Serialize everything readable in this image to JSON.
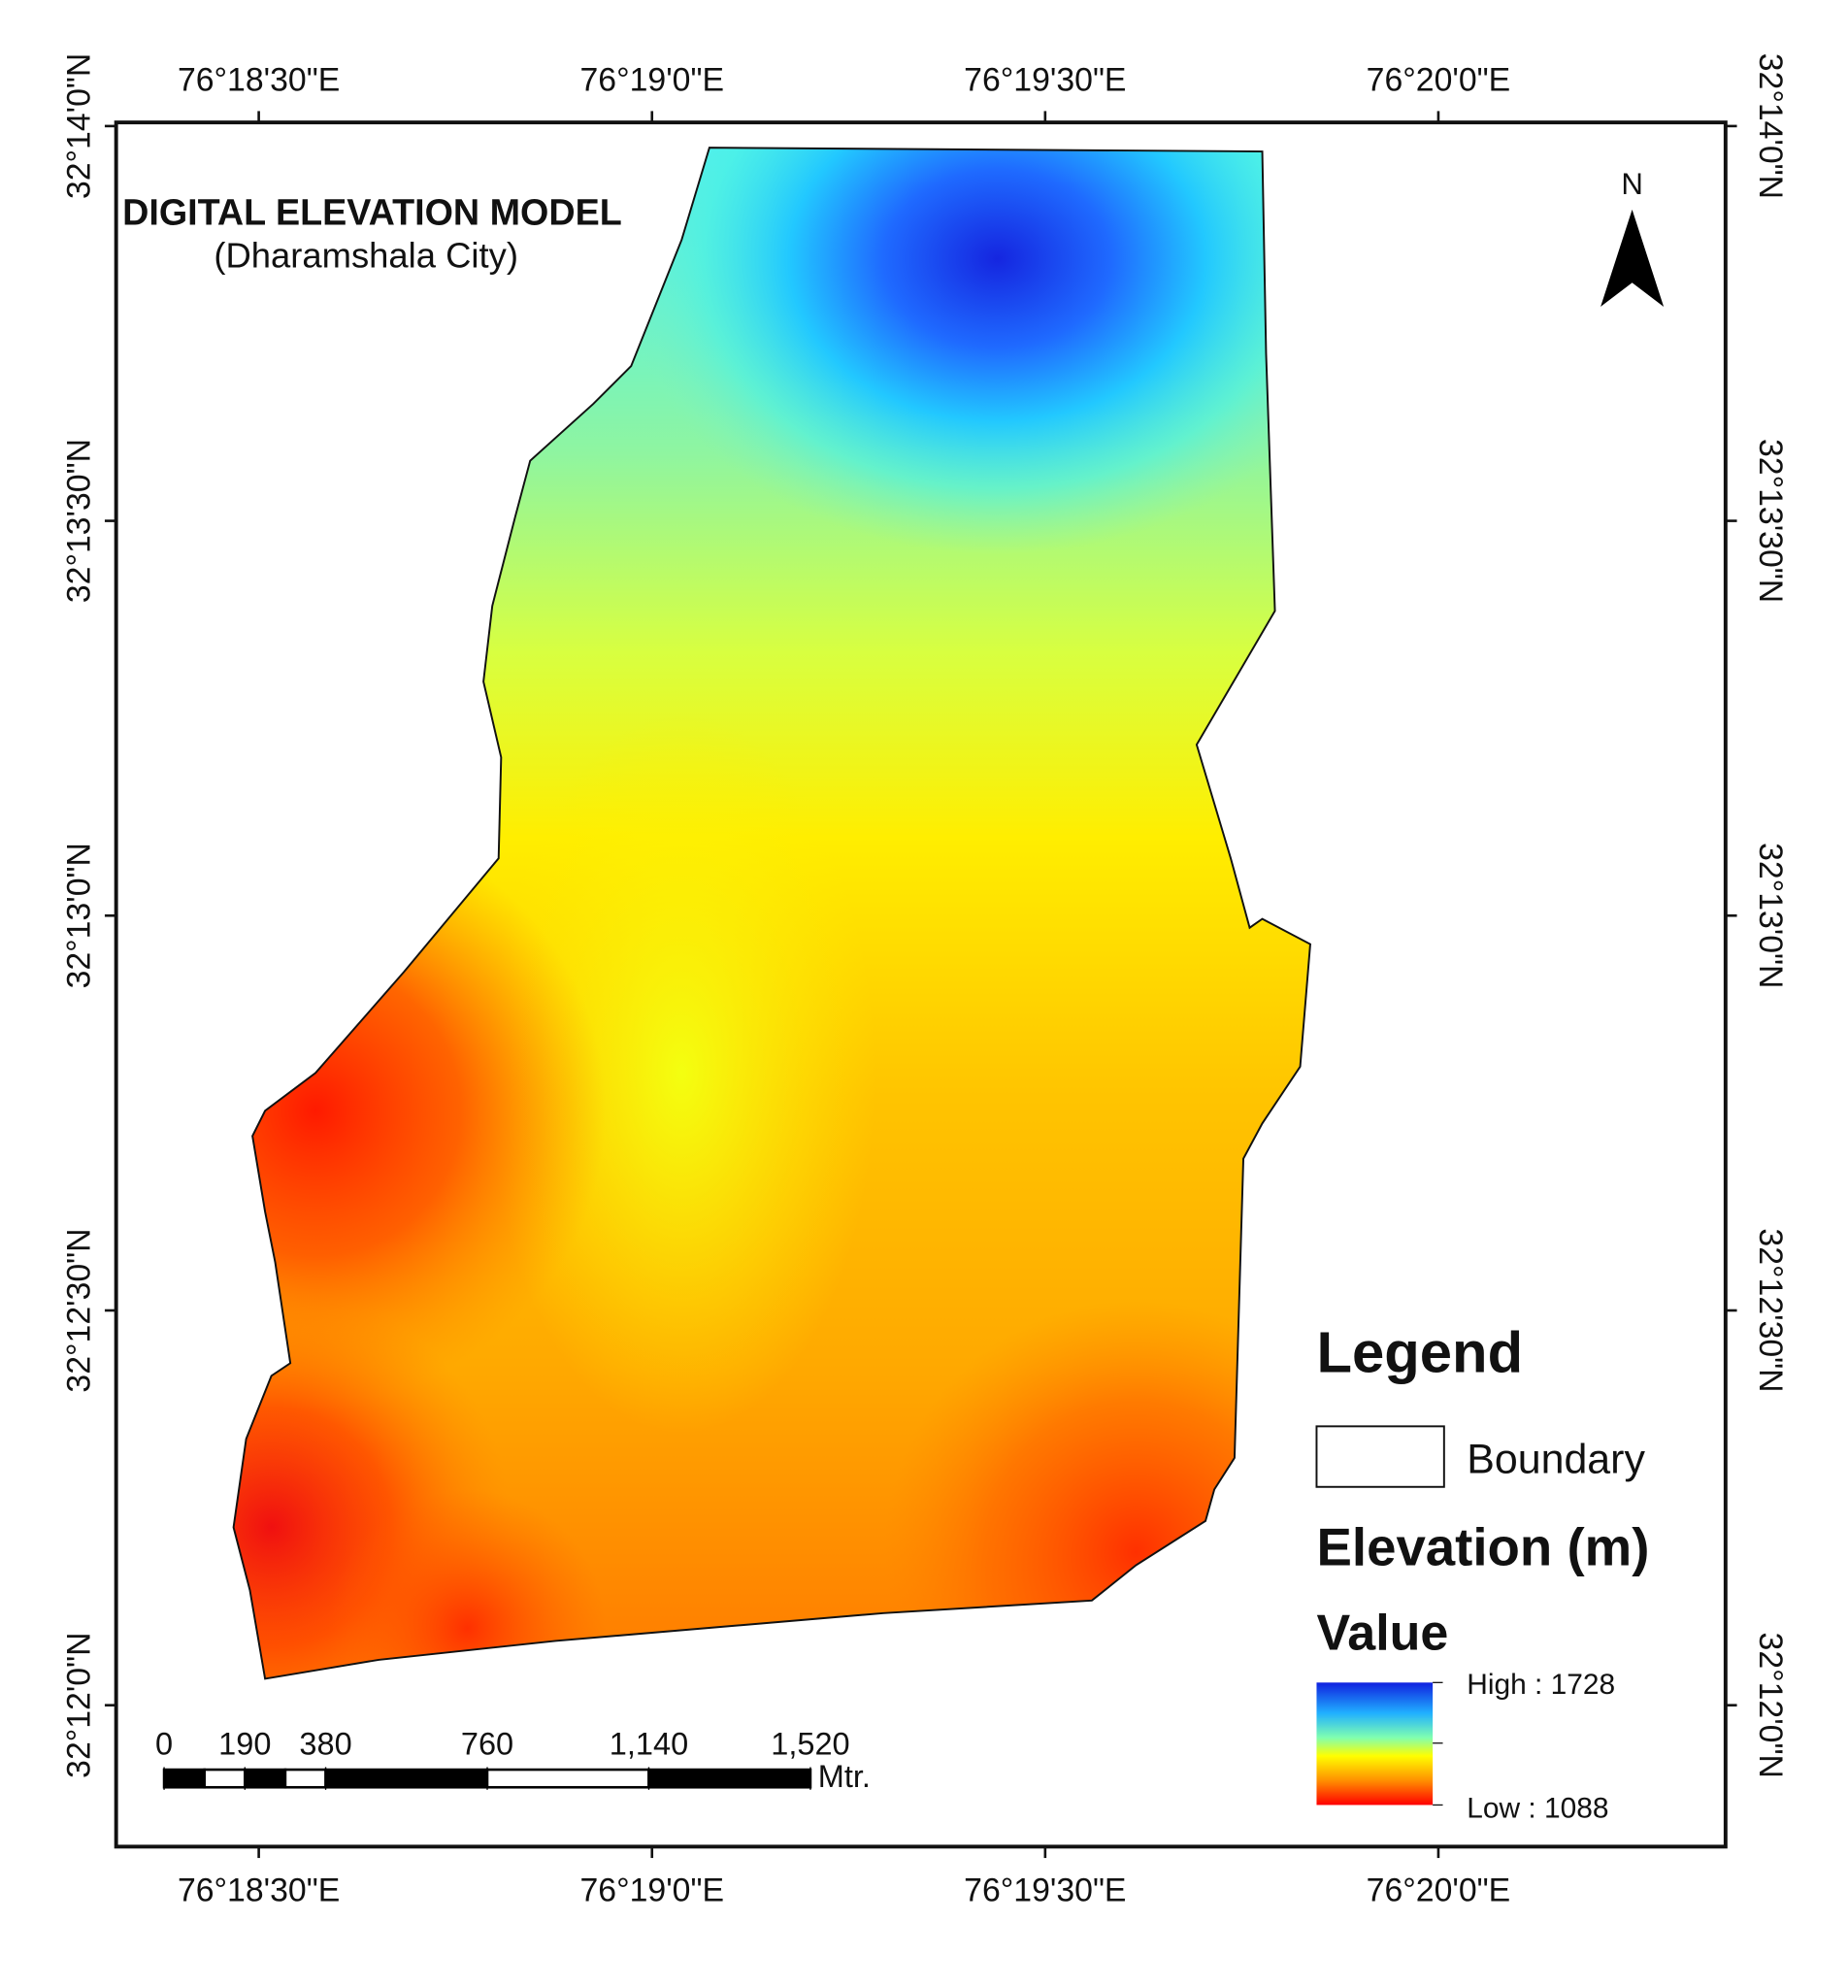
{
  "map": {
    "title": "DIGITAL ELEVATION MODEL",
    "subtitle": "(Dharamshala City)",
    "north": "N",
    "lonlim": [
      76.30531,
      76.33942
    ],
    "latlim": [
      32.197015,
      32.23341
    ],
    "lonticks": [
      {
        "value": 76.308333,
        "label": "76°18'30\"E"
      },
      {
        "value": 76.316667,
        "label": "76°19'0\"E"
      },
      {
        "value": 76.325,
        "label": "76°19'30\"E"
      },
      {
        "value": 76.333333,
        "label": "76°20'0\"E"
      }
    ],
    "latticks": [
      {
        "value": 32.233333,
        "label": "32°14'0\"N"
      },
      {
        "value": 32.225,
        "label": "32°13'30\"N"
      },
      {
        "value": 32.216667,
        "label": "32°13'0\"N"
      },
      {
        "value": 32.208333,
        "label": "32°12'30\"N"
      },
      {
        "value": 32.2,
        "label": "32°12'0\"N"
      }
    ],
    "legend": {
      "title": "Legend",
      "boundary": "Boundary",
      "raster_title": "Elevation (m)",
      "value_title": "Value",
      "high": {
        "value": 1728,
        "label": "High : 1728"
      },
      "low": {
        "value": 1088,
        "label": "Low : 1088"
      }
    },
    "scalebar": {
      "ticks": [
        {
          "value": 0,
          "label": "0"
        },
        {
          "value": 190,
          "label": "190"
        },
        {
          "value": 380,
          "label": "380"
        },
        {
          "value": 760,
          "label": "760"
        },
        {
          "value": 1140,
          "label": "1,140"
        },
        {
          "value": 1520,
          "label": "1,520"
        }
      ],
      "unit": "Mtr."
    }
  }
}
